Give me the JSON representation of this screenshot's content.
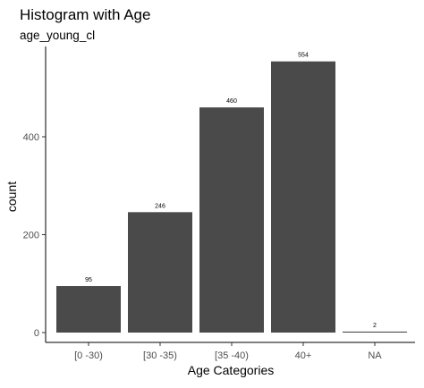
{
  "chart_data": {
    "type": "bar",
    "title": "Histogram with Age",
    "subtitle": "age_young_cl",
    "xlabel": "Age Categories",
    "ylabel": "count",
    "categories": [
      "[0 -30)",
      "[30 -35)",
      "[35 -40)",
      "40+",
      "NA"
    ],
    "values": [
      95,
      246,
      460,
      554,
      2
    ],
    "data_labels": [
      "95",
      "246",
      "460",
      "554",
      "2"
    ],
    "y_ticks": [
      0,
      200,
      400
    ],
    "ylim": [
      0,
      580
    ],
    "grid": false,
    "legend": "none",
    "bar_color": "#4a4a4a",
    "axis_color": "#000000",
    "text_color": "#4d4d4d"
  }
}
